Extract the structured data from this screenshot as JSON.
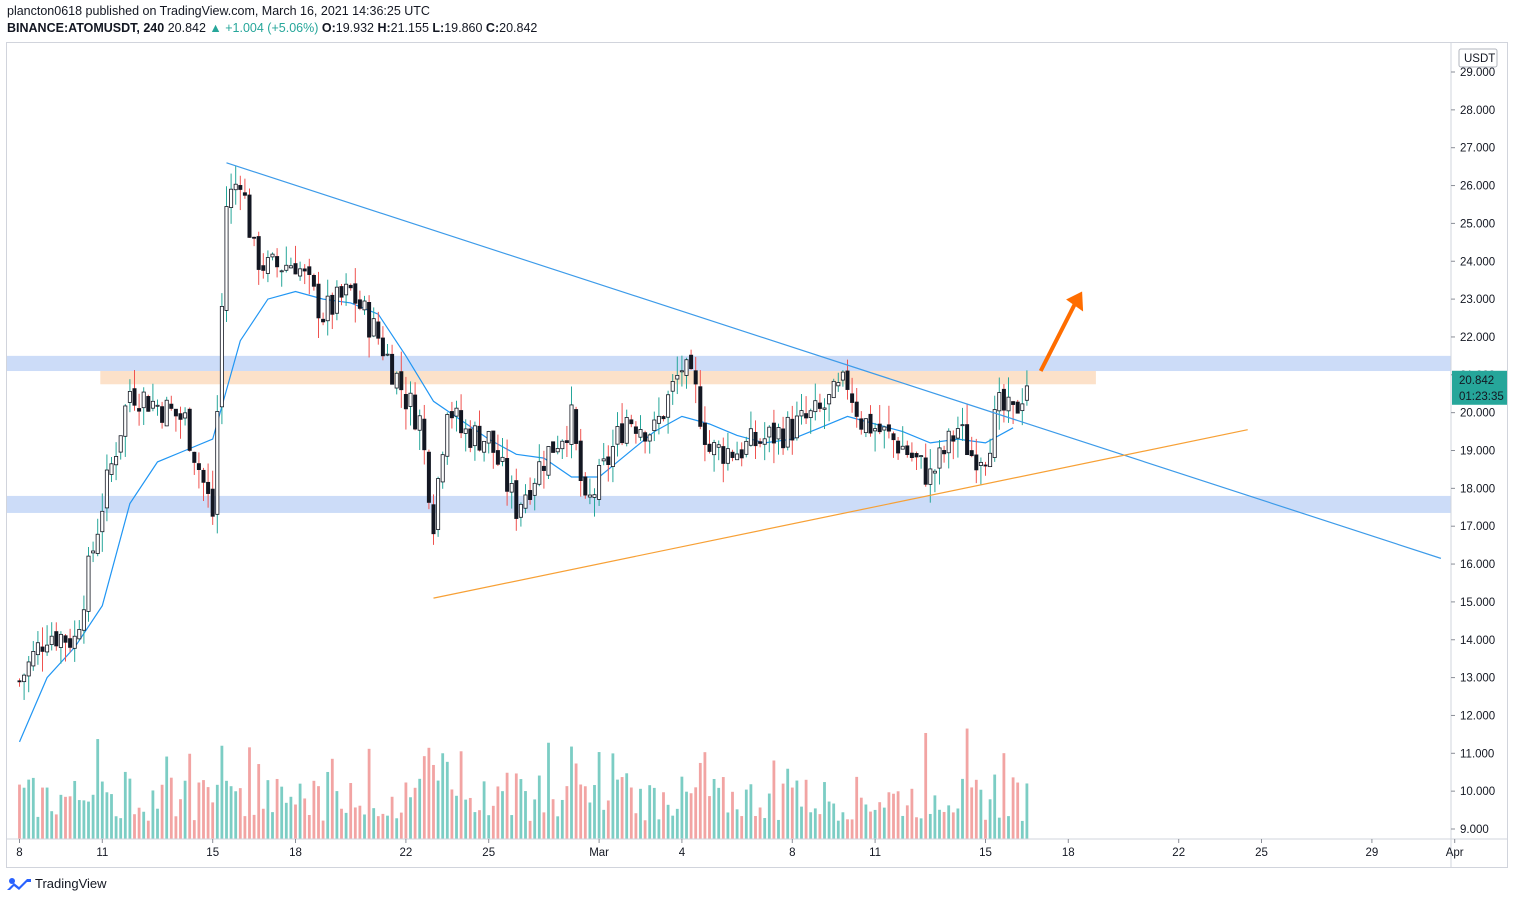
{
  "header": {
    "line1": "plancton0618 published on TradingView.com, March 16, 2021 14:36:25 UTC",
    "symbol": "BINANCE:ATOMUSDT, 240",
    "last": "20.842",
    "change": "▲ +1.004 (+5.06%)",
    "o_label": "O:",
    "o_value": "19.932",
    "h_label": "H:",
    "h_value": "21.155",
    "l_label": "L:",
    "l_value": "19.860",
    "c_label": "C:",
    "c_value": "20.842"
  },
  "footer": {
    "brand": "TradingView",
    "icon": "tradingview-logo-icon"
  },
  "price_scale": {
    "currency": "USDT",
    "last_price": "20.842",
    "countdown": "01:23:35",
    "ticks": [
      "29.000",
      "28.000",
      "27.000",
      "26.000",
      "25.000",
      "24.000",
      "23.000",
      "22.000",
      "21.000",
      "20.000",
      "19.000",
      "18.000",
      "17.000",
      "16.000",
      "15.000",
      "14.000",
      "13.000",
      "12.000",
      "11.000",
      "10.000",
      "9.000"
    ]
  },
  "colors": {
    "up": "#26a69a",
    "down": "#ef5350",
    "candle": "#131722",
    "vol_up": "#7ccdc4",
    "vol_down": "#f2a4a3",
    "ma": "#2196f3",
    "trend_down": "#3d9be9",
    "trend_up": "#f7a035",
    "zone_blue": "#c3d6f7",
    "zone_orange": "#fbdcc0",
    "arrow": "#ff6d00",
    "last_price_bg": "#26a69a"
  },
  "chart_data": {
    "type": "candlestick",
    "title": "BINANCE:ATOMUSDT, 240",
    "ylabel": "USDT",
    "ylim": [
      8.7,
      29.4
    ],
    "x_ticks": [
      "8",
      "11",
      "15",
      "18",
      "22",
      "25",
      "Mar",
      "4",
      "8",
      "11",
      "15",
      "18",
      "22",
      "25",
      "29",
      "Apr"
    ],
    "x_tick_dates": [
      "2021-02-08",
      "2021-02-11",
      "2021-02-15",
      "2021-02-18",
      "2021-02-22",
      "2021-02-25",
      "2021-03-01",
      "2021-03-04",
      "2021-03-08",
      "2021-03-11",
      "2021-03-15",
      "2021-03-18",
      "2021-03-22",
      "2021-03-25",
      "2021-03-29",
      "2021-04-01"
    ],
    "close_path": [
      {
        "date": "2021-02-08",
        "close": 12.9
      },
      {
        "date": "2021-02-09",
        "close": 14.2
      },
      {
        "date": "2021-02-10",
        "close": 14.0
      },
      {
        "date": "2021-02-11",
        "close": 17.6
      },
      {
        "date": "2021-02-12",
        "close": 20.6
      },
      {
        "date": "2021-02-13",
        "close": 20.2
      },
      {
        "date": "2021-02-14",
        "close": 19.8
      },
      {
        "date": "2021-02-15",
        "close": 17.3
      },
      {
        "date": "2021-02-15T12:00",
        "close": 25.5
      },
      {
        "date": "2021-02-16",
        "close": 26.3
      },
      {
        "date": "2021-02-16T12:00",
        "close": 24.2
      },
      {
        "date": "2021-02-17",
        "close": 23.8
      },
      {
        "date": "2021-02-18",
        "close": 24.0
      },
      {
        "date": "2021-02-19",
        "close": 22.6
      },
      {
        "date": "2021-02-20",
        "close": 23.2
      },
      {
        "date": "2021-02-21",
        "close": 22.0
      },
      {
        "date": "2021-02-22",
        "close": 20.4
      },
      {
        "date": "2021-02-22T12:00",
        "close": 19.8
      },
      {
        "date": "2021-02-23",
        "close": 17.2
      },
      {
        "date": "2021-02-23T12:00",
        "close": 20.3
      },
      {
        "date": "2021-02-24",
        "close": 19.5
      },
      {
        "date": "2021-02-25",
        "close": 19.3
      },
      {
        "date": "2021-02-26",
        "close": 17.5
      },
      {
        "date": "2021-02-27",
        "close": 18.8
      },
      {
        "date": "2021-02-28",
        "close": 19.8
      },
      {
        "date": "2021-02-28T12:00",
        "close": 17.4
      },
      {
        "date": "2021-03-01",
        "close": 18.2
      },
      {
        "date": "2021-03-02",
        "close": 19.9
      },
      {
        "date": "2021-03-03",
        "close": 19.5
      },
      {
        "date": "2021-03-04",
        "close": 21.2
      },
      {
        "date": "2021-03-04T12:00",
        "close": 20.5
      },
      {
        "date": "2021-03-05",
        "close": 19.0
      },
      {
        "date": "2021-03-06",
        "close": 19.0
      },
      {
        "date": "2021-03-07",
        "close": 19.3
      },
      {
        "date": "2021-03-08",
        "close": 19.6
      },
      {
        "date": "2021-03-09",
        "close": 20.0
      },
      {
        "date": "2021-03-10",
        "close": 20.8
      },
      {
        "date": "2021-03-10T12:00",
        "close": 19.8
      },
      {
        "date": "2021-03-11",
        "close": 19.6
      },
      {
        "date": "2021-03-12",
        "close": 19.1
      },
      {
        "date": "2021-03-13",
        "close": 18.3
      },
      {
        "date": "2021-03-14",
        "close": 19.6
      },
      {
        "date": "2021-03-14T12:00",
        "close": 18.9
      },
      {
        "date": "2021-03-15",
        "close": 19.0
      },
      {
        "date": "2021-03-15T12:00",
        "close": 20.1
      },
      {
        "date": "2021-03-16",
        "close": 19.9
      },
      {
        "date": "2021-03-16T12:00",
        "close": 20.842
      }
    ],
    "ma_path": [
      {
        "date": "2021-02-08",
        "value": 11.3
      },
      {
        "date": "2021-02-09",
        "value": 13.0
      },
      {
        "date": "2021-02-10",
        "value": 13.8
      },
      {
        "date": "2021-02-11",
        "value": 14.9
      },
      {
        "date": "2021-02-12",
        "value": 17.6
      },
      {
        "date": "2021-02-13",
        "value": 18.7
      },
      {
        "date": "2021-02-14",
        "value": 19.0
      },
      {
        "date": "2021-02-15",
        "value": 19.3
      },
      {
        "date": "2021-02-16",
        "value": 21.9
      },
      {
        "date": "2021-02-17",
        "value": 23.0
      },
      {
        "date": "2021-02-18",
        "value": 23.2
      },
      {
        "date": "2021-02-19",
        "value": 23.0
      },
      {
        "date": "2021-02-20",
        "value": 22.9
      },
      {
        "date": "2021-02-21",
        "value": 22.6
      },
      {
        "date": "2021-02-22",
        "value": 21.5
      },
      {
        "date": "2021-02-23",
        "value": 20.3
      },
      {
        "date": "2021-02-24",
        "value": 19.8
      },
      {
        "date": "2021-02-25",
        "value": 19.3
      },
      {
        "date": "2021-02-26",
        "value": 18.9
      },
      {
        "date": "2021-02-27",
        "value": 18.8
      },
      {
        "date": "2021-02-28",
        "value": 18.3
      },
      {
        "date": "2021-03-01",
        "value": 18.3
      },
      {
        "date": "2021-03-02",
        "value": 18.9
      },
      {
        "date": "2021-03-03",
        "value": 19.5
      },
      {
        "date": "2021-03-04",
        "value": 19.9
      },
      {
        "date": "2021-03-05",
        "value": 19.7
      },
      {
        "date": "2021-03-06",
        "value": 19.4
      },
      {
        "date": "2021-03-07",
        "value": 19.2
      },
      {
        "date": "2021-03-08",
        "value": 19.3
      },
      {
        "date": "2021-03-09",
        "value": 19.6
      },
      {
        "date": "2021-03-10",
        "value": 19.9
      },
      {
        "date": "2021-03-11",
        "value": 19.7
      },
      {
        "date": "2021-03-12",
        "value": 19.5
      },
      {
        "date": "2021-03-13",
        "value": 19.2
      },
      {
        "date": "2021-03-14",
        "value": 19.3
      },
      {
        "date": "2021-03-15",
        "value": 19.2
      },
      {
        "date": "2021-03-16",
        "value": 19.6
      }
    ],
    "zones": [
      {
        "kind": "blue",
        "from": 21.1,
        "to": 21.5
      },
      {
        "kind": "orange",
        "from": 20.75,
        "to": 21.1,
        "start": "2021-02-11",
        "end": "2021-03-19"
      },
      {
        "kind": "blue",
        "from": 17.35,
        "to": 17.8
      }
    ],
    "trendlines": [
      {
        "kind": "descending",
        "from": {
          "date": "2021-02-15T12:00",
          "price": 26.6
        },
        "to": {
          "date": "2021-03-31T12:00",
          "price": 16.15
        }
      },
      {
        "kind": "ascending",
        "from": {
          "date": "2021-02-23",
          "price": 15.1
        },
        "to": {
          "date": "2021-03-24T12:00",
          "price": 19.55
        }
      }
    ],
    "annotation": {
      "kind": "arrow-up",
      "from": {
        "date": "2021-03-17",
        "price": 21.1
      },
      "to": {
        "date": "2021-03-18T12:00",
        "price": 23.2
      }
    }
  }
}
